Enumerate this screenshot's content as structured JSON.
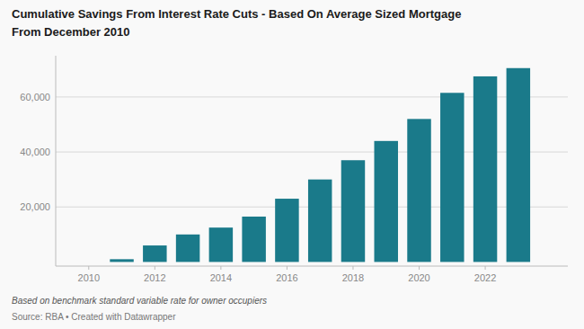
{
  "chart_data": {
    "type": "bar",
    "title": "Cumulative Savings From Interest Rate Cuts - Based On Average Sized Mortgage",
    "subtitle": "From December 2010",
    "annotations": [
      "Based on benchmark standard variable rate for owner occupiers",
      "Source: RBA • Created with Datawrapper"
    ],
    "x": [
      2010,
      2011,
      2012,
      2013,
      2014,
      2015,
      2016,
      2017,
      2018,
      2019,
      2020,
      2021,
      2022,
      2023
    ],
    "values": [
      0,
      1000,
      6000,
      10000,
      12500,
      16500,
      23000,
      30000,
      37000,
      44000,
      52000,
      61500,
      67500,
      70500
    ],
    "color": "#1a7a8a",
    "xlim": [
      2009.0,
      2024.5
    ],
    "xticks": [
      2010,
      2012,
      2014,
      2016,
      2018,
      2020,
      2022
    ],
    "ylim": [
      -1500,
      75000
    ],
    "yticks": [
      {
        "value": 20000,
        "label": "20,000"
      },
      {
        "value": 40000,
        "label": "40,000"
      },
      {
        "value": 60000,
        "label": "60,000"
      }
    ],
    "grid": true
  }
}
